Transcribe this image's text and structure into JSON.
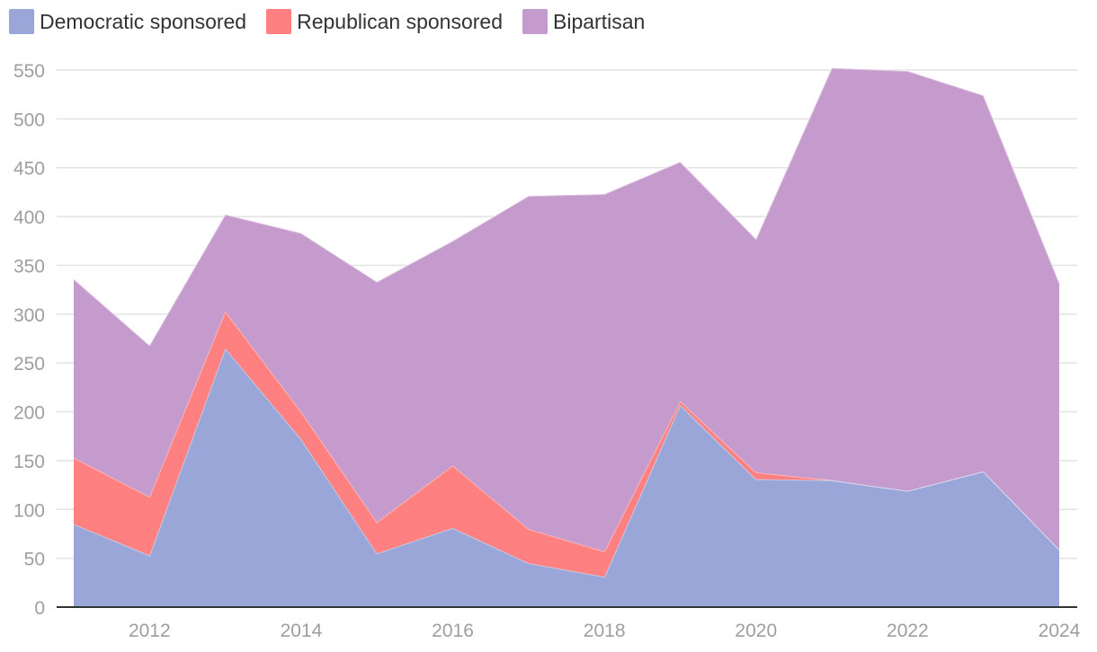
{
  "chart_data": {
    "type": "area",
    "stacked": true,
    "x": [
      2011,
      2012,
      2013,
      2014,
      2015,
      2016,
      2017,
      2018,
      2019,
      2020,
      2021,
      2022,
      2023,
      2024
    ],
    "series": [
      {
        "name": "Democratic sponsored",
        "color": "#9aa6d8",
        "values": [
          85,
          53,
          265,
          172,
          55,
          81,
          45,
          31,
          207,
          131,
          130,
          119,
          139,
          59
        ]
      },
      {
        "name": "Republican sponsored",
        "color": "#ff8080",
        "values": [
          68,
          60,
          38,
          28,
          32,
          64,
          35,
          26,
          4,
          7,
          0,
          0,
          0,
          0
        ]
      },
      {
        "name": "Bipartisan",
        "color": "#c59acc",
        "values": [
          183,
          155,
          99,
          183,
          246,
          230,
          341,
          366,
          245,
          239,
          422,
          430,
          385,
          273
        ]
      }
    ],
    "title": "",
    "xlabel": "",
    "ylabel": "",
    "ylim": [
      0,
      550
    ],
    "yticks": [
      0,
      50,
      100,
      150,
      200,
      250,
      300,
      350,
      400,
      450,
      500,
      550
    ],
    "xticks": [
      2012,
      2014,
      2016,
      2018,
      2020,
      2022,
      2024
    ],
    "grid": true,
    "legend_position": "top-left"
  }
}
